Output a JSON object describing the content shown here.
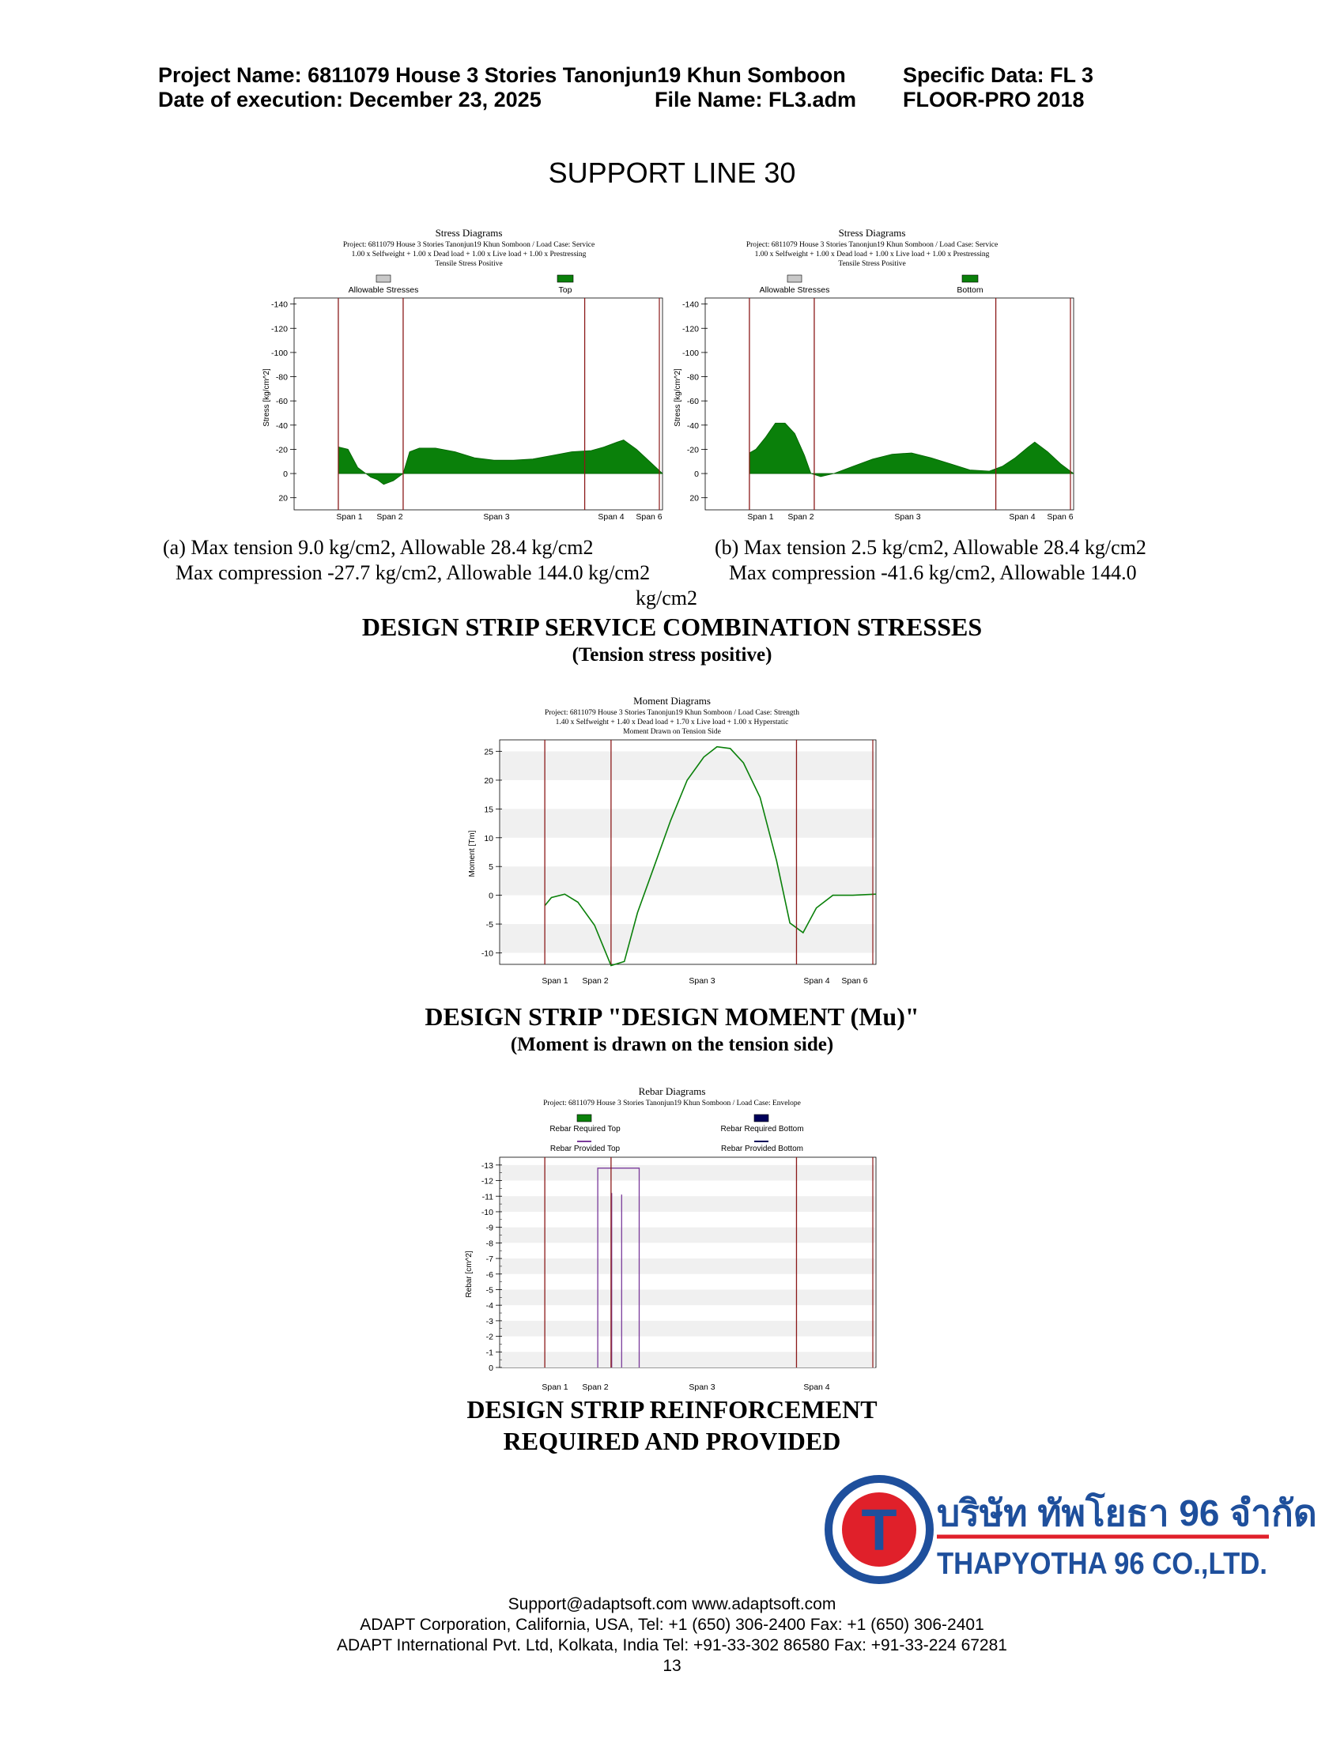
{
  "header": {
    "project_name": "Project Name: 6811079 House 3 Stories Tanonjun19 Khun Somboon",
    "specific_data": "Specific Data: FL 3",
    "date": "Date of execution: December 23, 2025",
    "file_name": "File Name: FL3.adm",
    "software": "FLOOR-PRO 2018"
  },
  "page_title": "SUPPORT LINE 30",
  "stress_top": {
    "title": "Stress Diagrams",
    "line1": "Project: 6811079 House 3 Stories Tanonjun19 Khun Somboon / Load Case: Service",
    "line2": "1.00 x Selfweight + 1.00 x Dead load + 1.00 x Live load + 1.00 x Prestressing",
    "line3": "Tensile Stress Positive",
    "legend_allow": "Allowable Stresses",
    "legend_series": "Top",
    "ylabel": "Stress [kg/cm^2]",
    "caption1": "(a) Max tension 9.0 kg/cm2, Allowable 28.4 kg/cm2",
    "caption2": "Max compression -27.7 kg/cm2, Allowable 144.0 kg/cm2"
  },
  "stress_bottom": {
    "title": "Stress Diagrams",
    "line1": "Project: 6811079 House 3 Stories Tanonjun19 Khun Somboon / Load Case: Service",
    "line2": "1.00 x Selfweight + 1.00 x Dead load + 1.00 x Live load + 1.00 x Prestressing",
    "line3": "Tensile Stress Positive",
    "legend_allow": "Allowable Stresses",
    "legend_series": "Bottom",
    "ylabel": "Stress [kg/cm^2]",
    "caption1": "(b) Max tension 2.5 kg/cm2, Allowable 28.4 kg/cm2",
    "caption2": "Max compression -41.6 kg/cm2, Allowable 144.0",
    "caption3": "kg/cm2"
  },
  "stress_section": {
    "title": "DESIGN STRIP SERVICE COMBINATION STRESSES",
    "subtitle": "(Tension stress positive)"
  },
  "moment": {
    "title": "Moment Diagrams",
    "line1": "Project: 6811079 House 3 Stories Tanonjun19 Khun Somboon / Load Case: Strength",
    "line2": "1.40 x Selfweight + 1.40 x Dead load + 1.70 x Live load + 1.00 x Hyperstatic",
    "line3": "Moment Drawn on Tension Side",
    "ylabel": "Moment [Tm]",
    "section_title": "DESIGN STRIP \"DESIGN MOMENT (Mu)\"",
    "section_subtitle": "(Moment is drawn on the tension side)"
  },
  "rebar": {
    "title": "Rebar Diagrams",
    "line1": "Project: 6811079 House 3 Stories Tanonjun19 Khun Somboon / Load Case: Envelope",
    "legend_req_top": "Rebar Required Top",
    "legend_req_bot": "Rebar Required Bottom",
    "legend_prov_top": "Rebar Provided Top",
    "legend_prov_bot": "Rebar Provided Bottom",
    "ylabel": "Rebar [cm^2]",
    "section_title1": "DESIGN STRIP REINFORCEMENT",
    "section_title2": "REQUIRED AND PROVIDED"
  },
  "span_labels": {
    "s1": "Span  1",
    "s2": "Span  2",
    "s3": "Span  3",
    "s4": "Span  4",
    "s6": "Span  6"
  },
  "logo": {
    "letter": "T",
    "thai": "บริษัท ทัพโยธา 96 จำกัด",
    "english": "THAPYOTHA 96 CO.,LTD."
  },
  "footer": {
    "line1": "Support@adaptsoft.com      www.adaptsoft.com",
    "line2": "ADAPT Corporation, California, USA,    Tel: +1 (650) 306-2400     Fax: +1 (650) 306-2401",
    "line3": "ADAPT International Pvt. Ltd, Kolkata, India Tel: +91-33-302 86580     Fax: +91-33-224 67281",
    "page_number": "13"
  },
  "colors": {
    "fill_green": "#0a800a",
    "allowable_gray": "#c8c8c8",
    "support_line": "#8b1a1a",
    "bottom_blue": "#00005a",
    "provided_purple": "#7a3a9a",
    "logo_blue": "#1e4f9c",
    "logo_red": "#e0202a"
  },
  "chart_data": [
    {
      "type": "area",
      "title": "Stress Diagrams",
      "series": [
        {
          "name": "Top",
          "x": [
            0.0,
            0.03,
            0.06,
            0.1,
            0.12,
            0.14,
            0.17,
            0.2,
            0.22,
            0.25,
            0.3,
            0.36,
            0.42,
            0.48,
            0.54,
            0.6,
            0.66,
            0.72,
            0.78,
            0.82,
            0.86,
            0.88,
            0.92,
            0.96,
            1.0
          ],
          "y": [
            -22,
            -20,
            -5,
            3,
            5,
            9,
            6,
            0,
            -18,
            -21,
            -21,
            -18,
            -13,
            -11,
            -11,
            -12,
            -15,
            -18,
            -19,
            -22,
            -26,
            -27.7,
            -20,
            -10,
            0
          ]
        }
      ],
      "ylabel": "Stress [kg/cm^2]",
      "ylim": [
        -145,
        30
      ],
      "allowable": [
        -144,
        28.4
      ],
      "supports": [
        0.0,
        0.2,
        0.76
      ]
    },
    {
      "type": "area",
      "title": "Stress Diagrams",
      "series": [
        {
          "name": "Bottom",
          "x": [
            0.0,
            0.02,
            0.05,
            0.08,
            0.11,
            0.14,
            0.17,
            0.19,
            0.22,
            0.26,
            0.32,
            0.38,
            0.44,
            0.5,
            0.56,
            0.62,
            0.68,
            0.74,
            0.78,
            0.82,
            0.86,
            0.88,
            0.92,
            0.96,
            1.0
          ],
          "y": [
            -17,
            -20,
            -30,
            -41.6,
            -41.6,
            -33,
            -15,
            0,
            2.5,
            0,
            -6,
            -12,
            -16,
            -17,
            -13,
            -8,
            -3,
            -2,
            -6,
            -13,
            -22,
            -26,
            -18,
            -8,
            0
          ]
        }
      ],
      "ylabel": "Stress [kg/cm^2]",
      "ylim": [
        -145,
        30
      ],
      "allowable": [
        -144,
        28.4
      ],
      "supports": [
        0.0,
        0.2,
        0.76
      ]
    },
    {
      "type": "line",
      "title": "Moment Diagrams",
      "series": [
        {
          "name": "Moment",
          "x": [
            0.0,
            0.02,
            0.06,
            0.1,
            0.15,
            0.2,
            0.24,
            0.28,
            0.33,
            0.38,
            0.43,
            0.48,
            0.52,
            0.56,
            0.6,
            0.65,
            0.7,
            0.74,
            0.78,
            0.82,
            0.87,
            0.93,
            1.0
          ],
          "y": [
            -1.8,
            -0.4,
            0.2,
            -1.2,
            -5.2,
            -12.2,
            -11.5,
            -3,
            5,
            13,
            20,
            24,
            25.8,
            25.5,
            23,
            17,
            6,
            -4.8,
            -6.5,
            -2.2,
            0,
            0,
            0.2
          ]
        }
      ],
      "ylabel": "Moment [Tm]",
      "ylim": [
        27,
        -12
      ],
      "supports": [
        0.0,
        0.2,
        0.76
      ]
    },
    {
      "type": "line",
      "title": "Rebar Diagrams",
      "series": [
        {
          "name": "Rebar Provided Top",
          "x": [
            0.16,
            0.16,
            0.285,
            0.285
          ],
          "y": [
            0,
            -12.8,
            -12.8,
            0
          ]
        },
        {
          "name": "Rebar Provided Top",
          "x": [
            0.202,
            0.202
          ],
          "y": [
            0,
            -11.2
          ]
        },
        {
          "name": "Rebar Provided Top",
          "x": [
            0.232,
            0.232
          ],
          "y": [
            0,
            -11.1
          ]
        }
      ],
      "ylabel": "Rebar [cm^2]",
      "ylim": [
        -13.5,
        0
      ],
      "supports": [
        0.0,
        0.2,
        0.76
      ]
    }
  ]
}
